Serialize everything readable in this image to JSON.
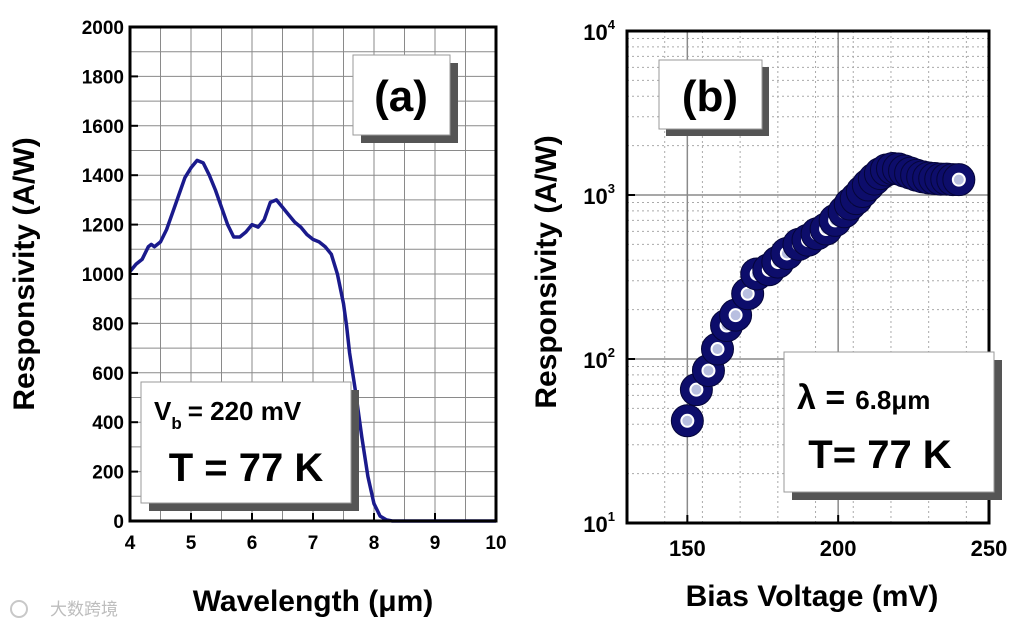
{
  "chart_data": [
    {
      "panel": "(a)",
      "type": "line",
      "xlabel": "Wavelength (μm)",
      "ylabel": "Responsivity (A/W)",
      "xlim": [
        4,
        10
      ],
      "ylim": [
        0,
        2000
      ],
      "xticks": [
        4,
        5,
        6,
        7,
        8,
        9,
        10
      ],
      "yticks": [
        0,
        200,
        400,
        600,
        800,
        1000,
        1200,
        1400,
        1600,
        1800,
        2000
      ],
      "grid": true,
      "color": "#1a1a8c",
      "series": [
        {
          "name": "Vb = 220 mV, T = 77 K",
          "x": [
            4.0,
            4.1,
            4.2,
            4.3,
            4.35,
            4.4,
            4.5,
            4.6,
            4.7,
            4.8,
            4.9,
            5.0,
            5.1,
            5.2,
            5.3,
            5.4,
            5.5,
            5.6,
            5.7,
            5.8,
            5.9,
            6.0,
            6.1,
            6.2,
            6.3,
            6.4,
            6.5,
            6.6,
            6.7,
            6.8,
            6.9,
            7.0,
            7.1,
            7.2,
            7.3,
            7.4,
            7.5,
            7.55,
            7.6,
            7.7,
            7.8,
            7.9,
            8.0,
            8.1,
            8.2,
            8.3,
            8.4,
            8.5,
            8.6,
            9.0,
            9.5,
            10.0
          ],
          "y": [
            1010,
            1040,
            1060,
            1110,
            1120,
            1110,
            1130,
            1180,
            1250,
            1320,
            1390,
            1430,
            1460,
            1450,
            1400,
            1340,
            1270,
            1200,
            1150,
            1150,
            1170,
            1200,
            1190,
            1220,
            1290,
            1300,
            1270,
            1240,
            1210,
            1190,
            1160,
            1140,
            1130,
            1110,
            1080,
            1000,
            880,
            790,
            680,
            520,
            340,
            180,
            70,
            20,
            5,
            0,
            0,
            0,
            0,
            0,
            0,
            0
          ]
        }
      ],
      "annotations": {
        "vb_symbol": "V",
        "vb_subscript": "b",
        "vb_value": "= 220 mV",
        "temperature": "T = 77 K"
      }
    },
    {
      "panel": "(b)",
      "type": "scatter",
      "xlabel": "Bias Voltage (mV)",
      "ylabel": "Responsivity (A/W)",
      "xlim": [
        130,
        250
      ],
      "ylim": [
        10,
        10000
      ],
      "yscale": "log",
      "xticks": [
        150,
        200,
        250
      ],
      "yticks": [
        {
          "value": 10,
          "base": "10",
          "exp": "1"
        },
        {
          "value": 100,
          "base": "10",
          "exp": "2"
        },
        {
          "value": 1000,
          "base": "10",
          "exp": "3"
        },
        {
          "value": 10000,
          "base": "10",
          "exp": "4"
        }
      ],
      "grid": true,
      "color": "#0d0d6b",
      "series": [
        {
          "name": "λ = 6.8μm, T = 77 K",
          "x": [
            150,
            153,
            157,
            160,
            163,
            166,
            170,
            173,
            177,
            180,
            183,
            187,
            190,
            193,
            196,
            199,
            202,
            204,
            206,
            208,
            210,
            212,
            214,
            216,
            218,
            220,
            222,
            224,
            226,
            228,
            230,
            232,
            234,
            236,
            238,
            240
          ],
          "y": [
            42,
            65,
            85,
            115,
            160,
            185,
            250,
            330,
            350,
            390,
            440,
            500,
            530,
            580,
            620,
            700,
            790,
            880,
            950,
            1050,
            1150,
            1250,
            1350,
            1420,
            1450,
            1440,
            1400,
            1360,
            1320,
            1290,
            1270,
            1260,
            1250,
            1250,
            1240,
            1240
          ]
        }
      ],
      "annotations": {
        "wavelength_symbol": "λ =",
        "wavelength_value": "6.8μm",
        "temperature": "T= 77 K"
      }
    }
  ],
  "watermark": "大数跨境"
}
